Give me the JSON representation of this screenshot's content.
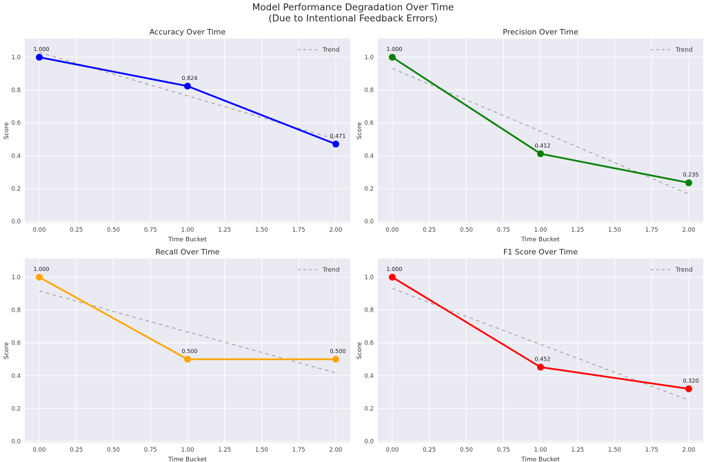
{
  "suptitle": {
    "line1": "Model Performance Degradation Over Time",
    "line2": "(Due to Intentional Feedback Errors)"
  },
  "colors": {
    "plot_background": "#eaeaf2",
    "grid_line": "#ffffff",
    "trend_line": "#a3a3a3",
    "accuracy": "#0000ff",
    "precision": "#008000",
    "recall": "#ffa500",
    "f1": "#ff0000"
  },
  "chart_data": [
    {
      "type": "line",
      "title": "Accuracy Over Time",
      "xlabel": "Time Bucket",
      "ylabel": "Score",
      "x": [
        0,
        1,
        2
      ],
      "values": [
        1.0,
        0.824,
        0.471
      ],
      "point_labels": [
        "1.000",
        "0.824",
        "0.471"
      ],
      "color": "#0000ff",
      "trend": {
        "type": "linear_fit",
        "label": "Trend",
        "color": "#a3a3a3",
        "style": "dashed"
      },
      "xticks": [
        "0.00",
        "0.25",
        "0.50",
        "0.75",
        "1.00",
        "1.25",
        "1.50",
        "1.75",
        "2.00"
      ],
      "yticks": [
        "0.0",
        "0.2",
        "0.4",
        "0.6",
        "0.8",
        "1.0"
      ],
      "xlim": [
        -0.1,
        2.1
      ],
      "ylim": [
        0,
        1.12
      ],
      "grid": true,
      "legend_position": "upper right"
    },
    {
      "type": "line",
      "title": "Precision Over Time",
      "xlabel": "Time Bucket",
      "ylabel": "Score",
      "x": [
        0,
        1,
        2
      ],
      "values": [
        1.0,
        0.412,
        0.235
      ],
      "point_labels": [
        "1.000",
        "0.412",
        "0.235"
      ],
      "color": "#008000",
      "trend": {
        "type": "linear_fit",
        "label": "Trend",
        "color": "#a3a3a3",
        "style": "dashed"
      },
      "xticks": [
        "0.00",
        "0.25",
        "0.50",
        "0.75",
        "1.00",
        "1.25",
        "1.50",
        "1.75",
        "2.00"
      ],
      "yticks": [
        "0.0",
        "0.2",
        "0.4",
        "0.6",
        "0.8",
        "1.0"
      ],
      "xlim": [
        -0.1,
        2.1
      ],
      "ylim": [
        0,
        1.12
      ],
      "grid": true,
      "legend_position": "upper right"
    },
    {
      "type": "line",
      "title": "Recall Over Time",
      "xlabel": "Time Bucket",
      "ylabel": "Score",
      "x": [
        0,
        1,
        2
      ],
      "values": [
        1.0,
        0.5,
        0.5
      ],
      "point_labels": [
        "1.000",
        "0.500",
        "0.500"
      ],
      "color": "#ffa500",
      "trend": {
        "type": "linear_fit",
        "label": "Trend",
        "color": "#a3a3a3",
        "style": "dashed"
      },
      "xticks": [
        "0.00",
        "0.25",
        "0.50",
        "0.75",
        "1.00",
        "1.25",
        "1.50",
        "1.75",
        "2.00"
      ],
      "yticks": [
        "0.0",
        "0.2",
        "0.4",
        "0.6",
        "0.8",
        "1.0"
      ],
      "xlim": [
        -0.1,
        2.1
      ],
      "ylim": [
        0,
        1.12
      ],
      "grid": true,
      "legend_position": "upper right"
    },
    {
      "type": "line",
      "title": "F1 Score Over Time",
      "xlabel": "Time Bucket",
      "ylabel": "Score",
      "x": [
        0,
        1,
        2
      ],
      "values": [
        1.0,
        0.452,
        0.32
      ],
      "point_labels": [
        "1.000",
        "0.452",
        "0.320"
      ],
      "color": "#ff0000",
      "trend": {
        "type": "linear_fit",
        "label": "Trend",
        "color": "#a3a3a3",
        "style": "dashed"
      },
      "xticks": [
        "0.00",
        "0.25",
        "0.50",
        "0.75",
        "1.00",
        "1.25",
        "1.50",
        "1.75",
        "2.00"
      ],
      "yticks": [
        "0.0",
        "0.2",
        "0.4",
        "0.6",
        "0.8",
        "1.0"
      ],
      "xlim": [
        -0.1,
        2.1
      ],
      "ylim": [
        0,
        1.12
      ],
      "grid": true,
      "legend_position": "upper right"
    }
  ]
}
